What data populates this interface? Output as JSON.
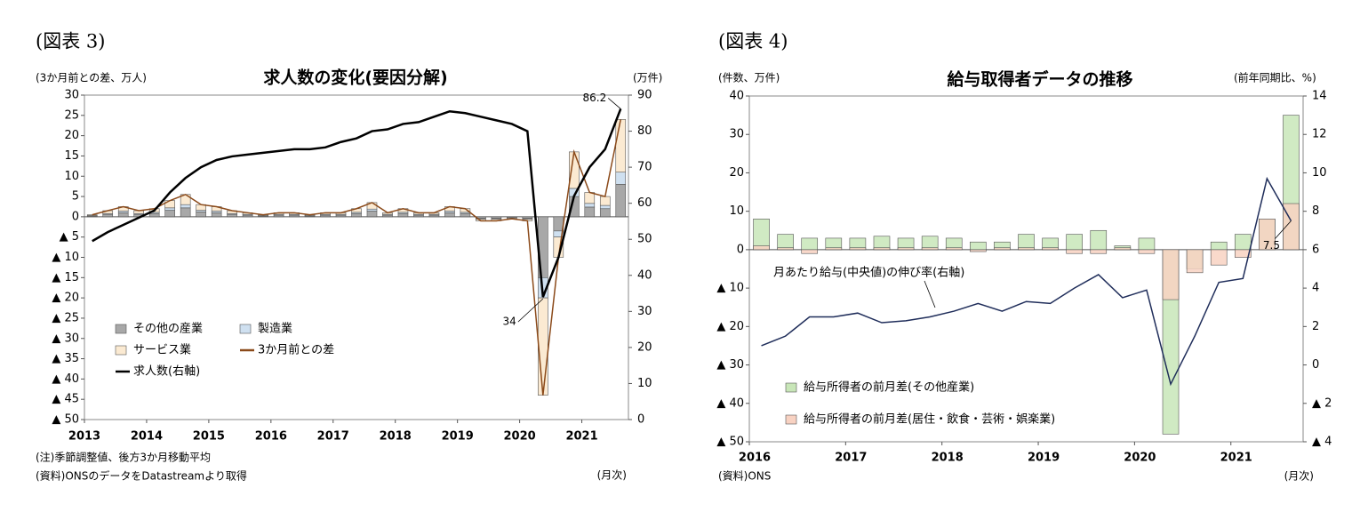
{
  "chart_data": [
    {
      "type": "bar",
      "stacked": true,
      "figure_label": "(図表 3)",
      "title": "求人数の変化(要因分解)",
      "ylabel": "(3か月前との差、万人)",
      "y2label": "(万件)",
      "xlabel": "(月次)",
      "notes": [
        "(注)季節調整値、後方3か月移動平均",
        "(資料)ONSのデータをDatastreamより取得"
      ],
      "annotations": [
        "86.2",
        "34"
      ],
      "x": [
        2013.125,
        2013.375,
        2013.625,
        2013.875,
        2014.125,
        2014.375,
        2014.625,
        2014.875,
        2015.125,
        2015.375,
        2015.625,
        2015.875,
        2016.125,
        2016.375,
        2016.625,
        2016.875,
        2017.125,
        2017.375,
        2017.625,
        2017.875,
        2018.125,
        2018.375,
        2018.625,
        2018.875,
        2019.125,
        2019.375,
        2019.625,
        2019.875,
        2020.125,
        2020.375,
        2020.625,
        2020.875,
        2021.125,
        2021.375,
        2021.625
      ],
      "xlim": [
        2013,
        2021.75
      ],
      "xticks": [
        2013,
        2014,
        2015,
        2016,
        2017,
        2018,
        2019,
        2020,
        2021
      ],
      "ylim": [
        -50,
        30
      ],
      "yticks": [
        30,
        25,
        20,
        15,
        10,
        5,
        0,
        {
          "value": -5,
          "label": "▲ 5"
        },
        {
          "value": -10,
          "label": "▲ 10"
        },
        {
          "value": -15,
          "label": "▲ 15"
        },
        {
          "value": -20,
          "label": "▲ 20"
        },
        {
          "value": -25,
          "label": "▲ 25"
        },
        {
          "value": -30,
          "label": "▲ 30"
        },
        {
          "value": -35,
          "label": "▲ 35"
        },
        {
          "value": -40,
          "label": "▲ 40"
        },
        {
          "value": -45,
          "label": "▲ 45"
        },
        {
          "value": -50,
          "label": "▲ 50"
        }
      ],
      "y2lim": [
        0,
        90
      ],
      "y2ticks": [
        0,
        10,
        20,
        30,
        40,
        50,
        60,
        70,
        80,
        90
      ],
      "series": [
        {
          "name": "その他の産業",
          "color": "#a8a8a8",
          "values": [
            0.2,
            0.6,
            1.0,
            0.6,
            0.8,
            1.6,
            2.2,
            1.2,
            1.0,
            0.6,
            0.4,
            0.2,
            0.4,
            0.4,
            0.2,
            0.4,
            0.4,
            0.8,
            1.4,
            0.4,
            0.8,
            0.4,
            0.4,
            1.0,
            0.8,
            -0.4,
            -0.4,
            -0.2,
            -0.4,
            -15,
            -3.5,
            5,
            2.4,
            2,
            8
          ]
        },
        {
          "name": "製造業",
          "color": "#cfe0f0",
          "values": [
            0.1,
            0.2,
            0.4,
            0.2,
            0.3,
            0.6,
            0.8,
            0.4,
            0.4,
            0.2,
            0.2,
            0.1,
            0.2,
            0.2,
            0.1,
            0.2,
            0.2,
            0.3,
            0.5,
            0.2,
            0.3,
            0.2,
            0.2,
            0.4,
            0.3,
            -0.2,
            -0.2,
            -0.1,
            -0.2,
            -5,
            -1.5,
            2,
            0.9,
            0.8,
            3
          ]
        },
        {
          "name": "サービス業",
          "color": "#fbead2",
          "values": [
            0.2,
            0.7,
            1.1,
            0.7,
            0.9,
            1.8,
            2.5,
            1.4,
            1.1,
            0.7,
            0.4,
            0.2,
            0.4,
            0.4,
            0.2,
            0.4,
            0.4,
            0.9,
            1.6,
            0.4,
            0.9,
            0.4,
            0.4,
            1.1,
            0.9,
            -0.4,
            -0.4,
            -0.2,
            -0.4,
            -24,
            -5,
            9,
            2.7,
            2.2,
            13
          ]
        },
        {
          "name": "3か月前との差",
          "type": "line",
          "color": "#8b4a1a",
          "values": [
            0.5,
            1.5,
            2.5,
            1.5,
            2,
            4,
            5.5,
            3,
            2.5,
            1.5,
            1,
            0.5,
            1,
            1,
            0.5,
            1,
            1,
            2,
            3.5,
            1,
            2,
            1,
            1,
            2.5,
            2,
            -1,
            -1,
            -0.5,
            -1,
            -44,
            -10,
            16,
            6,
            5,
            24
          ]
        },
        {
          "name": "求人数(右軸)",
          "type": "line",
          "axis": "y2",
          "color": "#000000",
          "values": [
            49.5,
            52,
            54,
            56,
            58,
            63,
            67,
            70,
            72,
            73,
            73.5,
            74,
            74.5,
            75,
            75,
            75.5,
            77,
            78,
            80,
            80.5,
            82,
            82.5,
            84,
            85.5,
            85,
            84,
            83,
            82,
            80,
            34,
            45,
            62,
            70,
            75,
            86.2
          ]
        }
      ]
    },
    {
      "type": "bar",
      "stacked": false,
      "figure_label": "(図表 4)",
      "title": "給与取得者データの推移",
      "ylabel": "(件数、万件)",
      "y2label": "(前年同期比、%)",
      "xlabel": "(月次)",
      "notes": [
        "(資料)ONS"
      ],
      "annotations": [
        "月あたり給与(中央値)の伸び率(右軸)",
        "7.5"
      ],
      "x": [
        2016.125,
        2016.375,
        2016.625,
        2016.875,
        2017.125,
        2017.375,
        2017.625,
        2017.875,
        2018.125,
        2018.375,
        2018.625,
        2018.875,
        2019.125,
        2019.375,
        2019.625,
        2019.875,
        2020.125,
        2020.375,
        2020.625,
        2020.875,
        2021.125,
        2021.375,
        2021.625
      ],
      "xlim": [
        2016,
        2021.75
      ],
      "xticks": [
        2016,
        2017,
        2018,
        2019,
        2020,
        2021
      ],
      "ylim": [
        -50,
        40
      ],
      "yticks": [
        40,
        30,
        20,
        10,
        0,
        {
          "value": -10,
          "label": "▲ 10"
        },
        {
          "value": -20,
          "label": "▲ 20"
        },
        {
          "value": -30,
          "label": "▲ 30"
        },
        {
          "value": -40,
          "label": "▲ 40"
        },
        {
          "value": -50,
          "label": "▲ 50"
        }
      ],
      "y2lim": [
        -4,
        14
      ],
      "y2ticks": [
        14,
        12,
        10,
        8,
        6,
        4,
        2,
        0,
        {
          "value": -2,
          "label": "▲ 2"
        },
        {
          "value": -4,
          "label": "▲ 4"
        }
      ],
      "series": [
        {
          "name": "給与所得者の前月差(その他産業)",
          "color": "#c8e6b8",
          "values": [
            8,
            4,
            3,
            3,
            3,
            3.5,
            3,
            3.5,
            3,
            2,
            2,
            4,
            3,
            4,
            5,
            1,
            3,
            -48,
            -5,
            2,
            4,
            8,
            35
          ]
        },
        {
          "name": "給与所得者の前月差(居住・飲食・芸術・娯楽業)",
          "color": "#f8d2c2",
          "values": [
            1,
            0.5,
            -1,
            0.5,
            0.5,
            0.5,
            0.5,
            0.5,
            0.5,
            -0.5,
            0.5,
            0.5,
            0.5,
            -1,
            -1,
            0.5,
            -1,
            -13,
            -6,
            -4,
            -2,
            8,
            12
          ]
        },
        {
          "type": "line",
          "axis": "y2",
          "color": "#1f2d5a",
          "values": [
            1,
            1.5,
            2.5,
            2.5,
            2.7,
            2.2,
            2.3,
            2.5,
            2.8,
            3.2,
            2.8,
            3.3,
            3.2,
            4,
            4.7,
            3.5,
            3.9,
            -1,
            1.5,
            4.3,
            4.5,
            9.7,
            7.5
          ]
        }
      ]
    }
  ]
}
